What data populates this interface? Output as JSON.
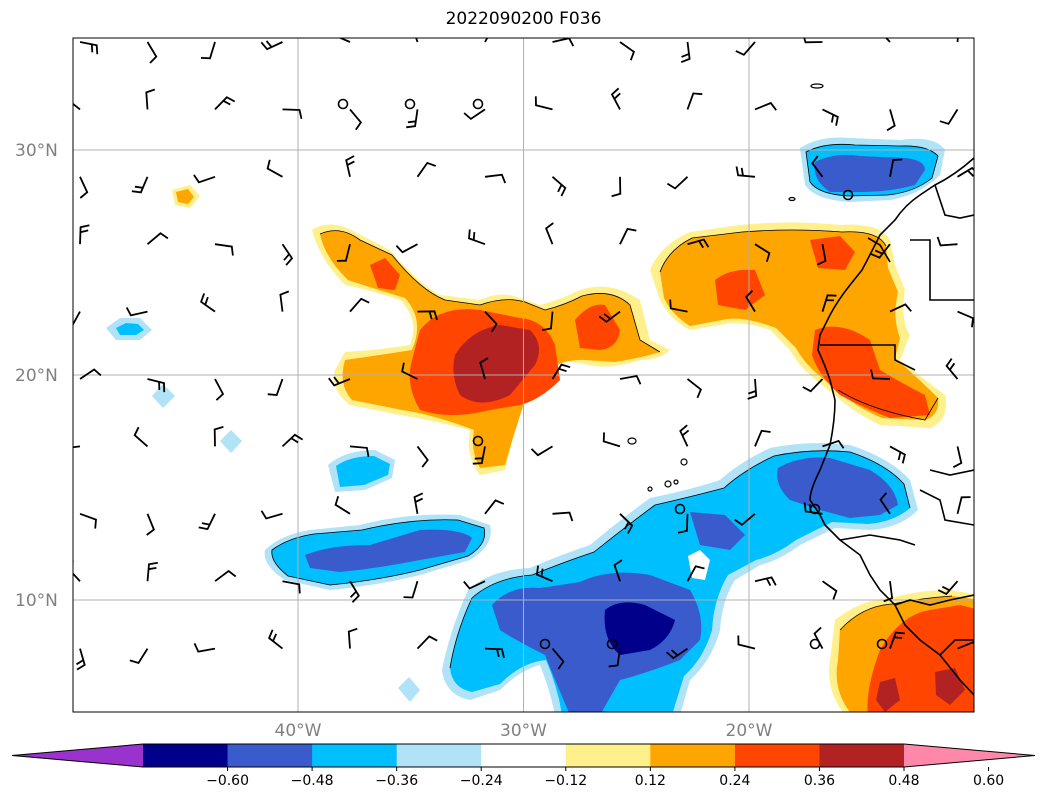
{
  "title": "2022090200 F036",
  "map": {
    "lat_labels": [
      "30°N",
      "20°N",
      "10°N"
    ],
    "lon_labels": [
      "40°W",
      "30°W",
      "20°W"
    ],
    "grid": true,
    "projection": "lat-lon",
    "extent": {
      "lon_min": -50,
      "lon_max": -10,
      "lat_min": 5,
      "lat_max": 35
    },
    "features": [
      "filled contours",
      "wind barbs",
      "coastlines",
      "country borders",
      "contour lines"
    ]
  },
  "colorbar": {
    "orientation": "horizontal",
    "extend": "both",
    "levels": [
      "−0.60",
      "−0.48",
      "−0.36",
      "−0.24",
      "−0.12",
      "0.12",
      "0.24",
      "0.36",
      "0.48",
      "0.60"
    ],
    "colors": [
      "#9a32cd",
      "#00008b",
      "#3a5bcb",
      "#00bfff",
      "#b0e2f8",
      "#ffffff",
      "#fff08c",
      "#ffa500",
      "#ff4500",
      "#b22222",
      "#ff88aa"
    ]
  }
}
